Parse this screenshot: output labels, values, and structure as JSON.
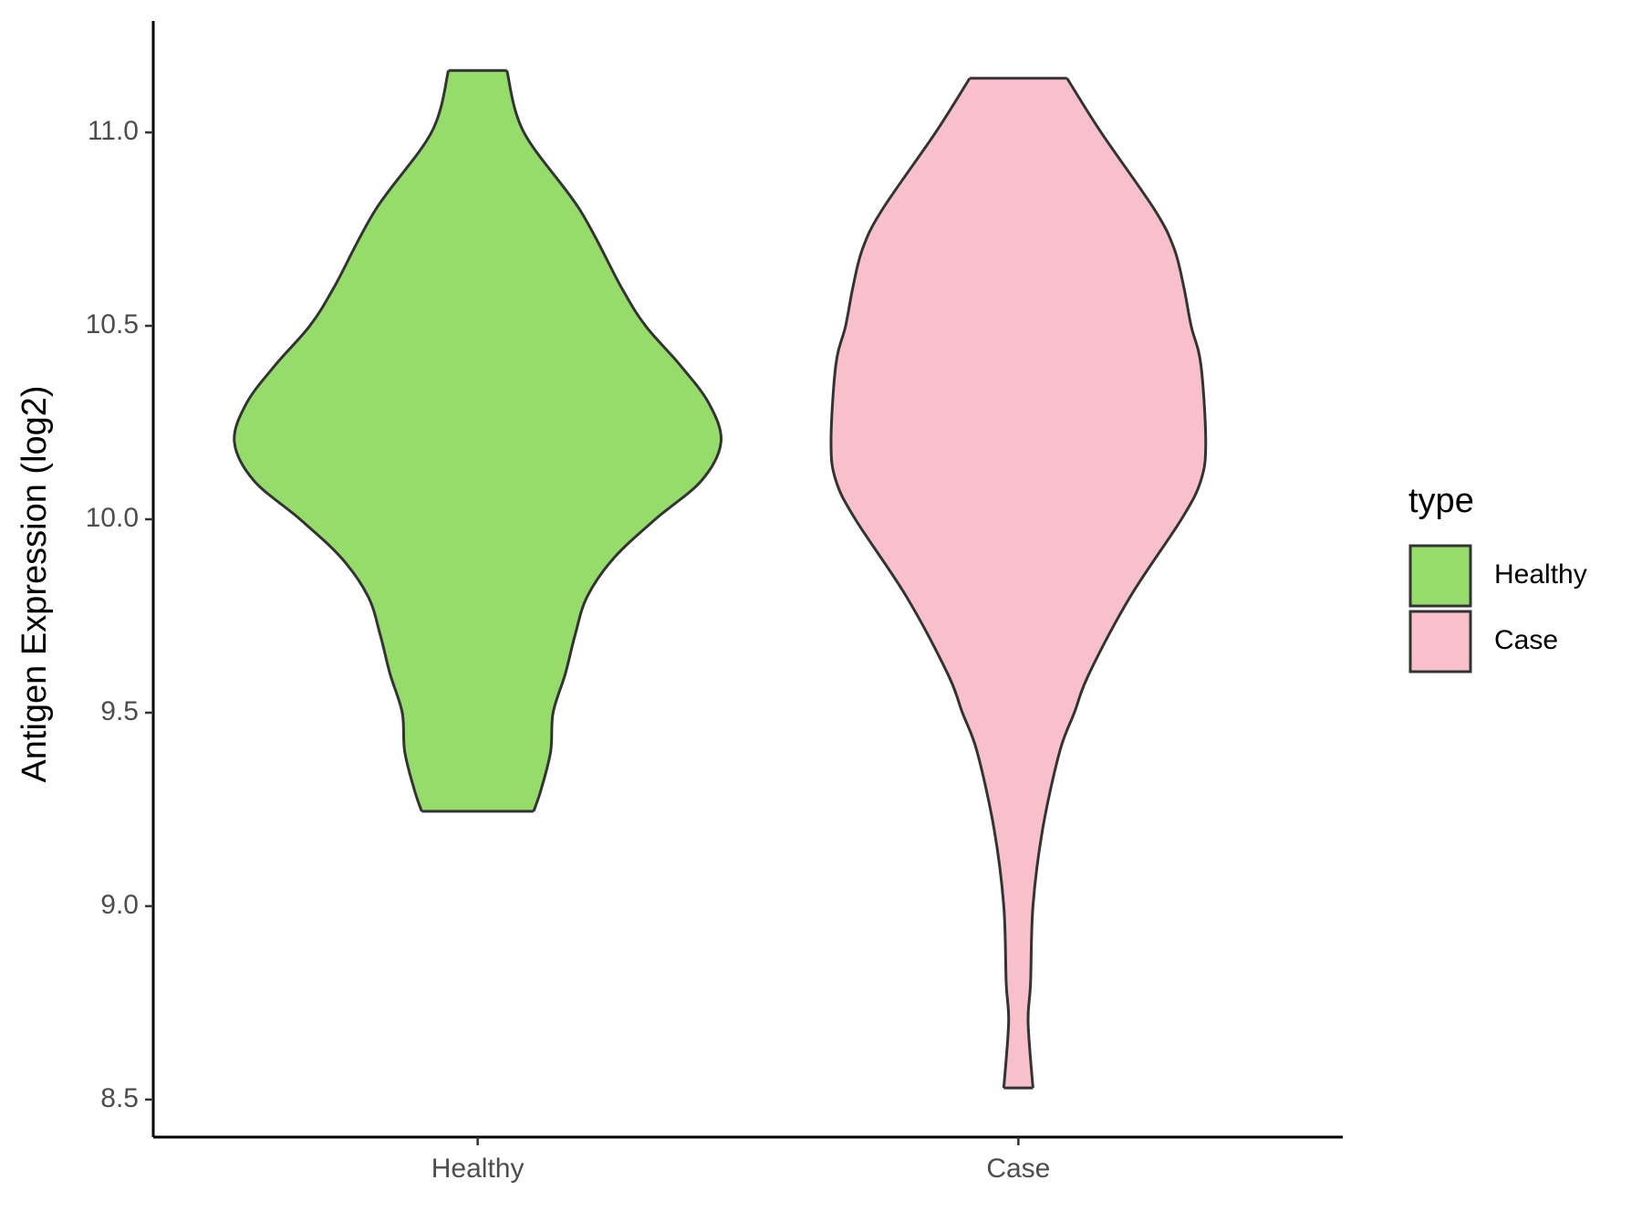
{
  "chart_data": {
    "type": "violin",
    "y_label": "Antigen Expression (log2)",
    "categories": [
      "Healthy",
      "Case"
    ],
    "legend_title": "type",
    "legend_position": "right",
    "ylim": [
      8.403,
      11.288
    ],
    "yticks": [
      {
        "value": 8.5,
        "label": "8.5"
      },
      {
        "value": 9.0,
        "label": "9.0"
      },
      {
        "value": 9.5,
        "label": "9.5"
      },
      {
        "value": 10.0,
        "label": "10.0"
      },
      {
        "value": 10.5,
        "label": "10.5"
      },
      {
        "value": 11.0,
        "label": "11.0"
      }
    ],
    "series": [
      {
        "name": "Healthy",
        "color": "#95dc6b",
        "y": [
          11.16,
          11.0,
          10.8,
          10.6,
          10.5,
          10.4,
          10.3,
          10.2,
          10.1,
          10.0,
          9.9,
          9.8,
          9.7,
          9.6,
          9.5,
          9.4,
          9.3,
          9.245
        ],
        "width": [
          0.12,
          0.19,
          0.42,
          0.59,
          0.69,
          0.83,
          0.95,
          1.0,
          0.92,
          0.73,
          0.56,
          0.45,
          0.4,
          0.36,
          0.31,
          0.3,
          0.26,
          0.23
        ]
      },
      {
        "name": "Case",
        "color": "#f7c0cb",
        "y": [
          11.14,
          11.0,
          10.8,
          10.7,
          10.6,
          10.5,
          10.4,
          10.2,
          10.1,
          10.0,
          9.8,
          9.6,
          9.5,
          9.4,
          9.2,
          9.0,
          8.8,
          8.7,
          8.53
        ],
        "width": [
          0.2,
          0.34,
          0.56,
          0.64,
          0.68,
          0.71,
          0.75,
          0.77,
          0.75,
          0.67,
          0.46,
          0.29,
          0.23,
          0.17,
          0.1,
          0.06,
          0.05,
          0.04,
          0.06
        ]
      }
    ]
  }
}
